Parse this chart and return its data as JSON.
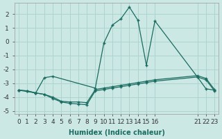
{
  "xlabel": "Humidex (Indice chaleur)",
  "bg_color": "#cce8e4",
  "grid_color": "#aed4cf",
  "line_color": "#1a6b60",
  "marker": "+",
  "line1_x": [
    0,
    1,
    2,
    3,
    4,
    5,
    6,
    7,
    8,
    9,
    10,
    11,
    12,
    13,
    14,
    15,
    16,
    21,
    22,
    23
  ],
  "line1_y": [
    -3.5,
    -3.55,
    -3.7,
    -3.8,
    -4.1,
    -4.35,
    -4.45,
    -4.5,
    -4.55,
    -3.55,
    -3.45,
    -3.35,
    -3.25,
    -3.15,
    -3.05,
    -2.95,
    -2.85,
    -2.55,
    -2.75,
    -3.55
  ],
  "line2_x": [
    0,
    2,
    3,
    4,
    9,
    10,
    11,
    12,
    13,
    14,
    15,
    16,
    21,
    22,
    23
  ],
  "line2_y": [
    -3.5,
    -3.7,
    -2.6,
    -2.5,
    -3.35,
    -0.1,
    1.2,
    1.65,
    2.5,
    1.55,
    -1.7,
    1.5,
    -2.55,
    -3.4,
    -3.5
  ],
  "line3_x": [
    0,
    1,
    2,
    3,
    4,
    5,
    6,
    7,
    8,
    9,
    10,
    11,
    12,
    13,
    14,
    15,
    16,
    21,
    22,
    23
  ],
  "line3_y": [
    -3.5,
    -3.55,
    -3.7,
    -3.8,
    -4.0,
    -4.3,
    -4.35,
    -4.35,
    -4.4,
    -3.45,
    -3.35,
    -3.25,
    -3.15,
    -3.05,
    -2.95,
    -2.85,
    -2.75,
    -2.45,
    -2.65,
    -3.45
  ],
  "xlim": [
    -0.5,
    23.5
  ],
  "ylim": [
    -5.2,
    2.8
  ],
  "xticks": [
    0,
    1,
    2,
    3,
    4,
    5,
    6,
    7,
    8,
    9,
    10,
    11,
    12,
    13,
    14,
    15,
    16,
    21,
    22,
    23
  ],
  "xtick_labels": [
    "0",
    "1",
    "2",
    "3",
    "4",
    "5",
    "6",
    "7",
    "8",
    "9",
    "10",
    "11",
    "12",
    "13",
    "14",
    "15",
    "16",
    "21",
    "22",
    "23"
  ],
  "yticks": [
    -5,
    -4,
    -3,
    -2,
    -1,
    0,
    1,
    2
  ],
  "fontsize_label": 7,
  "fontsize_tick": 6.5
}
